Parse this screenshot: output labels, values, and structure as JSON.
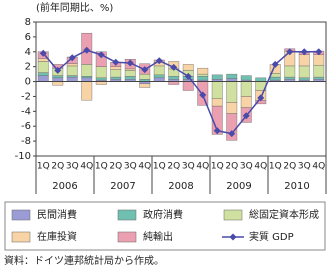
{
  "chart_data": {
    "type": "bar",
    "ylabel": "(前年同期比、%)",
    "categories": [
      "1Q",
      "2Q",
      "3Q",
      "4Q",
      "1Q",
      "2Q",
      "3Q",
      "4Q",
      "1Q",
      "2Q",
      "3Q",
      "4Q",
      "1Q",
      "2Q",
      "3Q",
      "4Q",
      "1Q",
      "2Q",
      "3Q",
      "4Q"
    ],
    "years": [
      "2006",
      "2007",
      "2008",
      "2009",
      "2010"
    ],
    "ylim": [
      -10,
      8
    ],
    "yticks": [
      8,
      6,
      4,
      2,
      0,
      -2,
      -4,
      -6,
      -8,
      -10
    ],
    "series": [
      {
        "name": "民間消費",
        "color": "#9b9bd6",
        "values": [
          0.8,
          0.5,
          0.6,
          0.5,
          0.2,
          0.3,
          0.3,
          -0.3,
          0.5,
          0.3,
          0.3,
          0.2,
          0.3,
          0.4,
          0.2,
          0.0,
          0.2,
          0.3,
          0.2,
          0.3
        ]
      },
      {
        "name": "政府消費",
        "color": "#6fc0b0",
        "values": [
          0.4,
          0.3,
          0.2,
          0.2,
          0.3,
          0.3,
          0.4,
          0.3,
          0.4,
          0.4,
          0.4,
          0.5,
          0.6,
          0.6,
          0.6,
          0.5,
          0.4,
          0.3,
          0.3,
          0.3
        ]
      },
      {
        "name": "総固定資本形成",
        "color": "#cfe0a0",
        "values": [
          1.5,
          1.0,
          1.3,
          1.6,
          1.5,
          1.0,
          0.8,
          0.7,
          1.2,
          1.0,
          0.8,
          0.3,
          -2.3,
          -2.8,
          -2.0,
          -1.2,
          0.5,
          1.5,
          1.6,
          1.6
        ]
      },
      {
        "name": "在庫投資",
        "color": "#f8d3a5",
        "values": [
          0.4,
          -0.5,
          0.3,
          -2.5,
          -0.4,
          0.4,
          0.2,
          -0.5,
          0.5,
          1.0,
          0.8,
          0.8,
          -1.0,
          -1.5,
          -1.5,
          -1.3,
          1.2,
          2.0,
          1.5,
          1.4
        ]
      },
      {
        "name": "純輸出",
        "color": "#eaa0b0",
        "values": [
          0.9,
          0.5,
          0.9,
          4.2,
          2.0,
          0.6,
          1.3,
          1.4,
          0.3,
          -0.4,
          -1.2,
          -3.2,
          -3.8,
          -3.6,
          -2.0,
          -0.5,
          0.0,
          0.3,
          0.3,
          0.5
        ]
      },
      {
        "name": "実質 GDP",
        "type": "line",
        "color": "#4a4aaa",
        "values": [
          3.8,
          1.5,
          3.2,
          4.2,
          3.6,
          2.6,
          2.5,
          1.6,
          2.8,
          1.9,
          0.7,
          -1.8,
          -6.6,
          -7.0,
          -4.6,
          -2.2,
          2.3,
          4.0,
          4.0,
          4.0
        ]
      }
    ],
    "source": "資料：ドイツ連邦統計局から作成。"
  }
}
